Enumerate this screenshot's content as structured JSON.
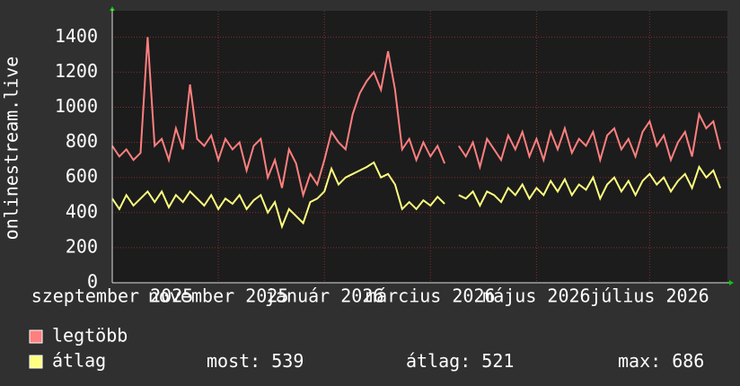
{
  "chart_data": {
    "type": "line",
    "ylabel": "onlinestream.live",
    "categories": [
      "szeptember 2025",
      null,
      null,
      null,
      null,
      null,
      null,
      null,
      null,
      null,
      null,
      null,
      null,
      null,
      null,
      "november 2025",
      null,
      null,
      null,
      null,
      null,
      null,
      null,
      null,
      null,
      null,
      null,
      null,
      null,
      null,
      "január 2026",
      null,
      null,
      null,
      null,
      null,
      null,
      null,
      null,
      null,
      null,
      null,
      null,
      null,
      null,
      "március 2026",
      null,
      null,
      null,
      null,
      null,
      null,
      null,
      null,
      null,
      null,
      null,
      null,
      null,
      null,
      "május 2026",
      null,
      null,
      null,
      null,
      null,
      null,
      null,
      null,
      null,
      null,
      null,
      null,
      null,
      null,
      null,
      "július 2026",
      null,
      null,
      null,
      null,
      null,
      null,
      null,
      null,
      null,
      null
    ],
    "series": [
      {
        "name": "legtöbb",
        "color": "#ff7f7f",
        "values": [
          780,
          720,
          760,
          700,
          740,
          1400,
          780,
          820,
          700,
          880,
          760,
          1130,
          820,
          780,
          840,
          700,
          820,
          760,
          800,
          640,
          780,
          820,
          600,
          700,
          540,
          760,
          680,
          500,
          620,
          560,
          700,
          860,
          800,
          760,
          960,
          1080,
          1150,
          1200,
          1100,
          1320,
          1100,
          760,
          820,
          700,
          800,
          720,
          780,
          680,
          null,
          780,
          720,
          800,
          660,
          820,
          760,
          700,
          840,
          760,
          860,
          720,
          820,
          700,
          860,
          760,
          880,
          740,
          820,
          780,
          860,
          700,
          840,
          880,
          760,
          820,
          720,
          860,
          920,
          780,
          840,
          700,
          800,
          860,
          720,
          960,
          880,
          920,
          760
        ]
      },
      {
        "name": "átlag",
        "color": "#ffff7f",
        "values": [
          480,
          420,
          500,
          440,
          480,
          520,
          460,
          520,
          430,
          500,
          460,
          520,
          480,
          440,
          500,
          420,
          480,
          450,
          500,
          420,
          470,
          500,
          400,
          460,
          320,
          420,
          380,
          340,
          460,
          480,
          520,
          650,
          560,
          600,
          620,
          640,
          660,
          686,
          600,
          620,
          560,
          420,
          460,
          420,
          470,
          440,
          490,
          450,
          null,
          500,
          480,
          520,
          440,
          520,
          500,
          460,
          540,
          500,
          560,
          480,
          540,
          500,
          580,
          520,
          590,
          500,
          560,
          530,
          600,
          480,
          560,
          600,
          520,
          580,
          500,
          580,
          620,
          560,
          600,
          520,
          580,
          620,
          540,
          660,
          600,
          640,
          539
        ]
      }
    ],
    "stats": [
      {
        "label": "most:",
        "value": 539
      },
      {
        "label": "átlag:",
        "value": 521
      },
      {
        "label": "max:",
        "value": 686
      }
    ],
    "ylim": [
      0,
      1550
    ],
    "yticks": [
      0,
      200,
      400,
      600,
      800,
      1000,
      1200,
      1400
    ],
    "grid": true
  }
}
